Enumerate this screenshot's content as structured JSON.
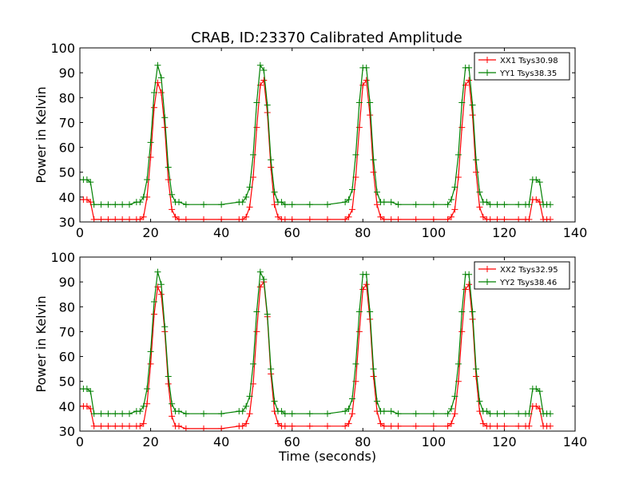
{
  "title": "CRAB, ID:23370 Calibrated Amplitude",
  "chart_data": [
    {
      "type": "line",
      "ylabel": "Power in Kelvin",
      "xlabel": "",
      "xlim": [
        0,
        140
      ],
      "ylim": [
        30,
        100
      ],
      "xticks": [
        "0",
        "20",
        "40",
        "60",
        "80",
        "100",
        "120",
        "140"
      ],
      "yticks": [
        "30",
        "40",
        "50",
        "60",
        "70",
        "80",
        "90",
        "100"
      ],
      "legend_position": "top-right",
      "marker": "+",
      "series": [
        {
          "name": "XX1 Tsys30.98",
          "color": "#ff0000",
          "x": [
            0,
            1,
            2,
            3,
            4,
            6,
            8,
            10,
            12,
            14,
            16,
            17,
            18,
            19,
            20,
            21,
            22,
            23,
            24,
            25,
            26,
            27,
            28,
            30,
            35,
            40,
            45,
            46,
            47,
            48,
            49,
            50,
            51,
            52,
            53,
            54,
            55,
            56,
            57,
            58,
            60,
            65,
            70,
            75,
            76,
            77,
            78,
            79,
            80,
            81,
            82,
            83,
            84,
            85,
            86,
            88,
            90,
            95,
            100,
            104,
            105,
            106,
            107,
            108,
            109,
            110,
            111,
            112,
            113,
            114,
            115,
            116,
            118,
            120,
            124,
            126,
            127,
            128,
            129,
            130,
            131,
            132,
            133
          ],
          "values": [
            39,
            39,
            39,
            38,
            31,
            31,
            31,
            31,
            31,
            31,
            31,
            31,
            32,
            40,
            56,
            76,
            86,
            82,
            68,
            47,
            35,
            32,
            31,
            31,
            31,
            31,
            31,
            31,
            32,
            36,
            48,
            68,
            85,
            87,
            74,
            52,
            37,
            32,
            31,
            31,
            31,
            31,
            31,
            31,
            32,
            35,
            48,
            68,
            85,
            87,
            73,
            50,
            37,
            32,
            31,
            31,
            31,
            31,
            31,
            31,
            32,
            35,
            48,
            68,
            85,
            87,
            73,
            50,
            36,
            32,
            31,
            31,
            31,
            31,
            31,
            31,
            31,
            39,
            39,
            38,
            31,
            31,
            31
          ]
        },
        {
          "name": "YY1 Tsys38.35",
          "color": "#008000",
          "x": [
            0,
            1,
            2,
            3,
            4,
            6,
            8,
            10,
            12,
            14,
            16,
            17,
            18,
            19,
            20,
            21,
            22,
            23,
            24,
            25,
            26,
            27,
            28,
            30,
            35,
            40,
            45,
            46,
            47,
            48,
            49,
            50,
            51,
            52,
            53,
            54,
            55,
            56,
            57,
            58,
            60,
            65,
            70,
            75,
            76,
            77,
            78,
            79,
            80,
            81,
            82,
            83,
            84,
            85,
            86,
            88,
            90,
            95,
            100,
            104,
            105,
            106,
            107,
            108,
            109,
            110,
            111,
            112,
            113,
            114,
            115,
            116,
            118,
            120,
            124,
            126,
            127,
            128,
            129,
            130,
            131,
            132,
            133
          ],
          "values": [
            47,
            47,
            47,
            46,
            37,
            37,
            37,
            37,
            37,
            37,
            38,
            38,
            40,
            47,
            62,
            82,
            93,
            88,
            72,
            52,
            41,
            38,
            38,
            37,
            37,
            37,
            38,
            38,
            40,
            44,
            57,
            78,
            93,
            91,
            77,
            55,
            42,
            38,
            38,
            37,
            37,
            37,
            37,
            38,
            39,
            43,
            57,
            78,
            92,
            92,
            78,
            55,
            42,
            38,
            38,
            38,
            37,
            37,
            37,
            37,
            39,
            44,
            57,
            78,
            92,
            92,
            77,
            55,
            42,
            38,
            38,
            37,
            37,
            37,
            37,
            37,
            37,
            47,
            47,
            46,
            37,
            37,
            37
          ]
        }
      ]
    },
    {
      "type": "line",
      "ylabel": "Power in Kelvin",
      "xlabel": "Time (seconds)",
      "xlim": [
        0,
        140
      ],
      "ylim": [
        30,
        100
      ],
      "xticks": [
        "0",
        "20",
        "40",
        "60",
        "80",
        "100",
        "120",
        "140"
      ],
      "yticks": [
        "30",
        "40",
        "50",
        "60",
        "70",
        "80",
        "90",
        "100"
      ],
      "legend_position": "top-right",
      "marker": "+",
      "series": [
        {
          "name": "XX2 Tsys32.95",
          "color": "#ff0000",
          "x": [
            0,
            1,
            2,
            3,
            4,
            6,
            8,
            10,
            12,
            14,
            16,
            17,
            18,
            19,
            20,
            21,
            22,
            23,
            24,
            25,
            26,
            27,
            28,
            30,
            35,
            40,
            45,
            46,
            47,
            48,
            49,
            50,
            51,
            52,
            53,
            54,
            55,
            56,
            57,
            58,
            60,
            65,
            70,
            75,
            76,
            77,
            78,
            79,
            80,
            81,
            82,
            83,
            84,
            85,
            86,
            88,
            90,
            95,
            100,
            104,
            105,
            106,
            107,
            108,
            109,
            110,
            111,
            112,
            113,
            114,
            115,
            116,
            118,
            120,
            124,
            126,
            127,
            128,
            129,
            130,
            131,
            132,
            133
          ],
          "values": [
            40,
            40,
            40,
            39,
            32,
            32,
            32,
            32,
            32,
            32,
            32,
            32,
            33,
            41,
            57,
            77,
            88,
            85,
            70,
            49,
            36,
            32,
            32,
            31,
            31,
            31,
            32,
            32,
            33,
            37,
            49,
            70,
            88,
            90,
            76,
            53,
            38,
            33,
            32,
            32,
            32,
            32,
            32,
            32,
            33,
            37,
            50,
            70,
            87,
            89,
            75,
            52,
            38,
            33,
            32,
            32,
            32,
            32,
            32,
            32,
            33,
            37,
            50,
            70,
            87,
            89,
            75,
            52,
            38,
            33,
            32,
            32,
            32,
            32,
            32,
            32,
            32,
            40,
            40,
            39,
            32,
            32,
            32
          ]
        },
        {
          "name": "YY2 Tsys38.46",
          "color": "#008000",
          "x": [
            0,
            1,
            2,
            3,
            4,
            6,
            8,
            10,
            12,
            14,
            16,
            17,
            18,
            19,
            20,
            21,
            22,
            23,
            24,
            25,
            26,
            27,
            28,
            30,
            35,
            40,
            45,
            46,
            47,
            48,
            49,
            50,
            51,
            52,
            53,
            54,
            55,
            56,
            57,
            58,
            60,
            65,
            70,
            75,
            76,
            77,
            78,
            79,
            80,
            81,
            82,
            83,
            84,
            85,
            86,
            88,
            90,
            95,
            100,
            104,
            105,
            106,
            107,
            108,
            109,
            110,
            111,
            112,
            113,
            114,
            115,
            116,
            118,
            120,
            124,
            126,
            127,
            128,
            129,
            130,
            131,
            132,
            133
          ],
          "values": [
            47,
            47,
            47,
            46,
            37,
            37,
            37,
            37,
            37,
            37,
            38,
            38,
            40,
            47,
            62,
            82,
            94,
            89,
            72,
            52,
            41,
            38,
            38,
            37,
            37,
            37,
            38,
            38,
            40,
            44,
            57,
            78,
            94,
            91,
            77,
            55,
            42,
            38,
            38,
            37,
            37,
            37,
            37,
            38,
            39,
            43,
            57,
            78,
            93,
            93,
            78,
            55,
            42,
            38,
            38,
            38,
            37,
            37,
            37,
            37,
            39,
            44,
            57,
            78,
            93,
            93,
            78,
            55,
            42,
            38,
            38,
            37,
            37,
            37,
            37,
            37,
            37,
            47,
            47,
            46,
            37,
            37,
            37
          ]
        }
      ]
    }
  ]
}
